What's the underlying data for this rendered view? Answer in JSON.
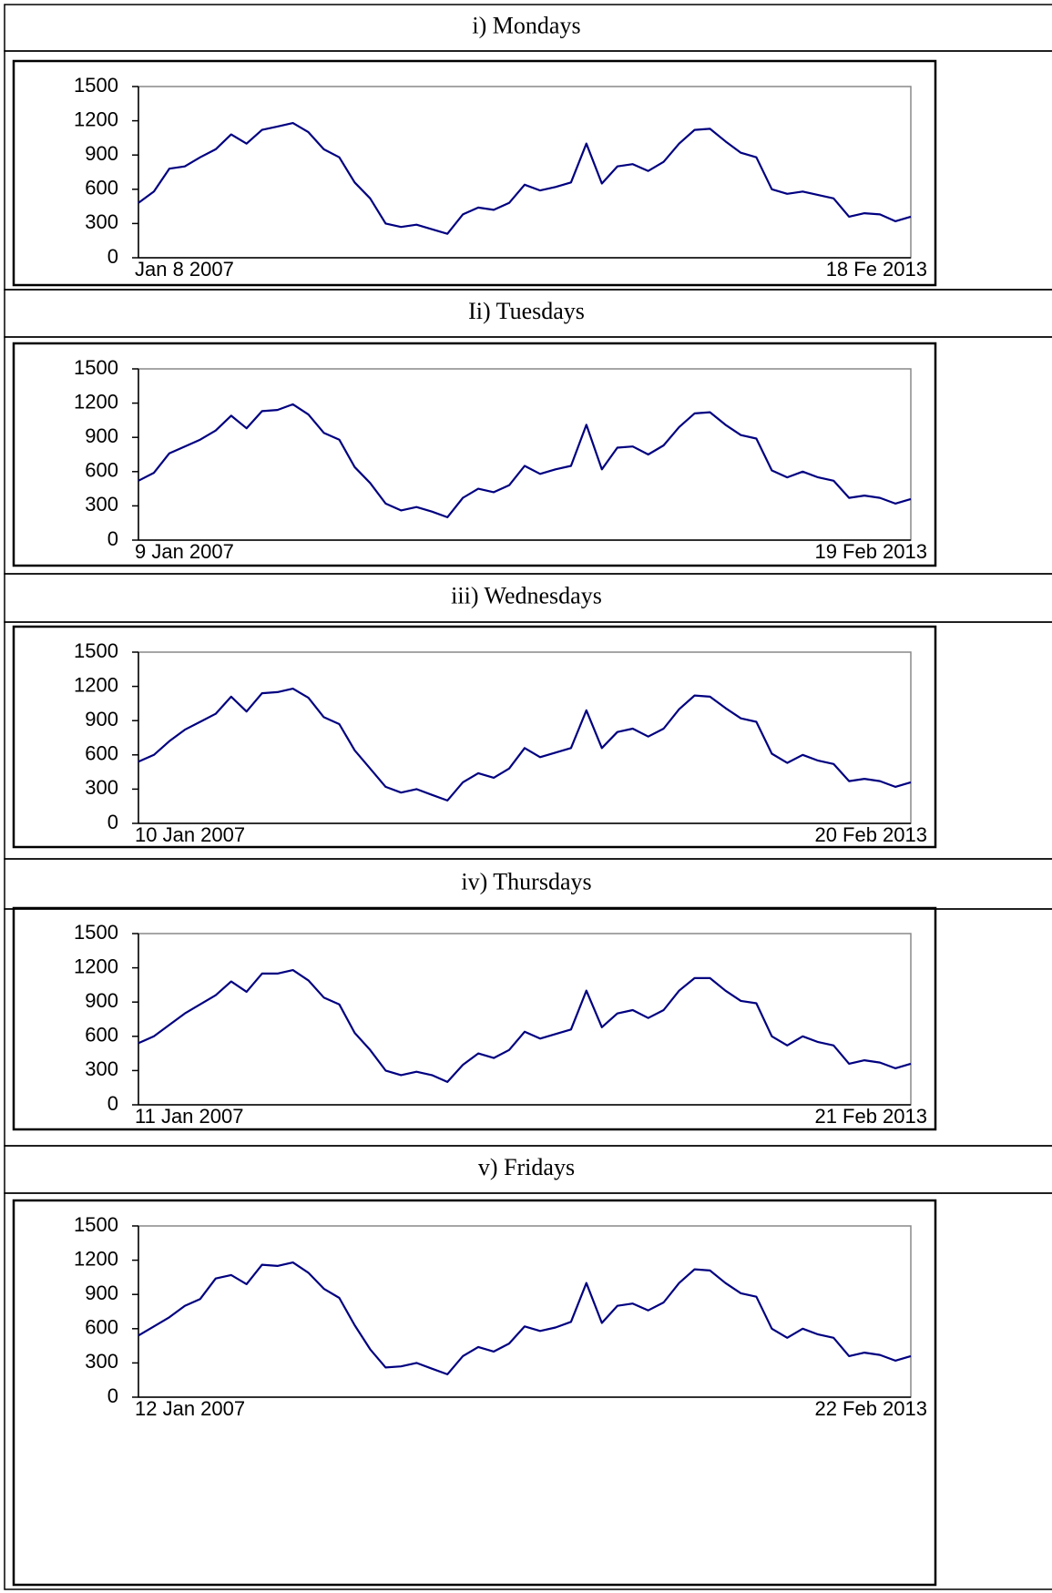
{
  "chart_data": [
    {
      "type": "line",
      "title": "i) Mondays",
      "color": "#000080",
      "ylim": [
        0,
        1500
      ],
      "yticks": [
        0,
        300,
        600,
        900,
        1200,
        1500
      ],
      "categories": [
        "Jan 8 2007",
        null,
        null,
        null,
        null,
        null,
        null,
        null,
        null,
        null,
        null,
        null,
        null,
        null,
        null,
        null,
        null,
        null,
        null,
        null,
        null,
        null,
        null,
        null,
        null,
        null,
        null,
        null,
        null,
        null,
        null,
        null,
        null,
        null,
        null,
        null,
        null,
        null,
        null,
        null,
        null,
        null,
        null,
        null,
        null,
        null,
        null,
        null,
        null,
        null,
        "18 Fe 2013"
      ],
      "values": [
        480,
        580,
        780,
        800,
        880,
        950,
        1080,
        1000,
        1120,
        1150,
        1180,
        1100,
        950,
        880,
        660,
        520,
        300,
        270,
        290,
        250,
        210,
        380,
        440,
        420,
        480,
        640,
        590,
        620,
        660,
        1000,
        650,
        800,
        820,
        760,
        840,
        1000,
        1120,
        1130,
        1020,
        920,
        880,
        600,
        560,
        580,
        550,
        520,
        360,
        390,
        380,
        320,
        360
      ]
    },
    {
      "type": "line",
      "title": "Ii) Tuesdays",
      "color": "#000080",
      "ylim": [
        0,
        1500
      ],
      "yticks": [
        0,
        300,
        600,
        900,
        1200,
        1500
      ],
      "categories": [
        "9 Jan 2007",
        null,
        null,
        null,
        null,
        null,
        null,
        null,
        null,
        null,
        null,
        null,
        null,
        null,
        null,
        null,
        null,
        null,
        null,
        null,
        null,
        null,
        null,
        null,
        null,
        null,
        null,
        null,
        null,
        null,
        null,
        null,
        null,
        null,
        null,
        null,
        null,
        null,
        null,
        null,
        null,
        null,
        null,
        null,
        null,
        null,
        null,
        null,
        null,
        null,
        "19 Feb 2013"
      ],
      "values": [
        520,
        590,
        760,
        820,
        880,
        960,
        1090,
        980,
        1130,
        1140,
        1190,
        1100,
        940,
        880,
        640,
        500,
        320,
        260,
        290,
        250,
        200,
        370,
        450,
        420,
        480,
        650,
        580,
        620,
        650,
        1010,
        620,
        810,
        820,
        750,
        830,
        990,
        1110,
        1120,
        1010,
        920,
        890,
        610,
        550,
        600,
        550,
        520,
        370,
        390,
        370,
        320,
        360
      ]
    },
    {
      "type": "line",
      "title": "iii)  Wednesdays",
      "color": "#000080",
      "ylim": [
        0,
        1500
      ],
      "yticks": [
        0,
        300,
        600,
        900,
        1200,
        1500
      ],
      "categories": [
        "10 Jan 2007",
        null,
        null,
        null,
        null,
        null,
        null,
        null,
        null,
        null,
        null,
        null,
        null,
        null,
        null,
        null,
        null,
        null,
        null,
        null,
        null,
        null,
        null,
        null,
        null,
        null,
        null,
        null,
        null,
        null,
        null,
        null,
        null,
        null,
        null,
        null,
        null,
        null,
        null,
        null,
        null,
        null,
        null,
        null,
        null,
        null,
        null,
        null,
        null,
        null,
        "20 Feb 2013"
      ],
      "values": [
        540,
        600,
        720,
        820,
        890,
        960,
        1110,
        980,
        1140,
        1150,
        1180,
        1100,
        930,
        870,
        640,
        480,
        320,
        270,
        300,
        250,
        200,
        360,
        440,
        400,
        480,
        660,
        580,
        620,
        660,
        990,
        660,
        800,
        830,
        760,
        830,
        1000,
        1120,
        1110,
        1010,
        920,
        890,
        610,
        530,
        600,
        550,
        520,
        370,
        390,
        370,
        320,
        360
      ]
    },
    {
      "type": "line",
      "title": "iv)  Thursdays",
      "color": "#000080",
      "ylim": [
        0,
        1500
      ],
      "yticks": [
        0,
        300,
        600,
        900,
        1200,
        1500
      ],
      "categories": [
        "11 Jan 2007",
        null,
        null,
        null,
        null,
        null,
        null,
        null,
        null,
        null,
        null,
        null,
        null,
        null,
        null,
        null,
        null,
        null,
        null,
        null,
        null,
        null,
        null,
        null,
        null,
        null,
        null,
        null,
        null,
        null,
        null,
        null,
        null,
        null,
        null,
        null,
        null,
        null,
        null,
        null,
        null,
        null,
        null,
        null,
        null,
        null,
        null,
        null,
        null,
        null,
        "21 Feb 2013"
      ],
      "values": [
        540,
        600,
        700,
        800,
        880,
        960,
        1080,
        990,
        1150,
        1150,
        1180,
        1090,
        940,
        880,
        630,
        480,
        300,
        260,
        290,
        260,
        200,
        350,
        450,
        410,
        480,
        640,
        580,
        620,
        660,
        1000,
        680,
        800,
        830,
        760,
        830,
        1000,
        1110,
        1110,
        1000,
        910,
        890,
        600,
        520,
        600,
        550,
        520,
        360,
        390,
        370,
        320,
        360
      ]
    },
    {
      "type": "line",
      "title": "v)  Fridays",
      "color": "#000080",
      "ylim": [
        0,
        1500
      ],
      "yticks": [
        0,
        300,
        600,
        900,
        1200,
        1500
      ],
      "categories": [
        "12 Jan 2007",
        null,
        null,
        null,
        null,
        null,
        null,
        null,
        null,
        null,
        null,
        null,
        null,
        null,
        null,
        null,
        null,
        null,
        null,
        null,
        null,
        null,
        null,
        null,
        null,
        null,
        null,
        null,
        null,
        null,
        null,
        null,
        null,
        null,
        null,
        null,
        null,
        null,
        null,
        null,
        null,
        null,
        null,
        null,
        null,
        null,
        null,
        null,
        null,
        null,
        "22 Feb 2013"
      ],
      "values": [
        540,
        620,
        700,
        800,
        860,
        1040,
        1070,
        990,
        1160,
        1150,
        1180,
        1090,
        950,
        870,
        630,
        420,
        260,
        270,
        300,
        250,
        200,
        360,
        440,
        400,
        470,
        620,
        580,
        610,
        660,
        1000,
        650,
        800,
        820,
        760,
        830,
        1000,
        1120,
        1110,
        1000,
        910,
        880,
        600,
        520,
        600,
        550,
        520,
        360,
        390,
        370,
        320,
        360
      ]
    }
  ]
}
